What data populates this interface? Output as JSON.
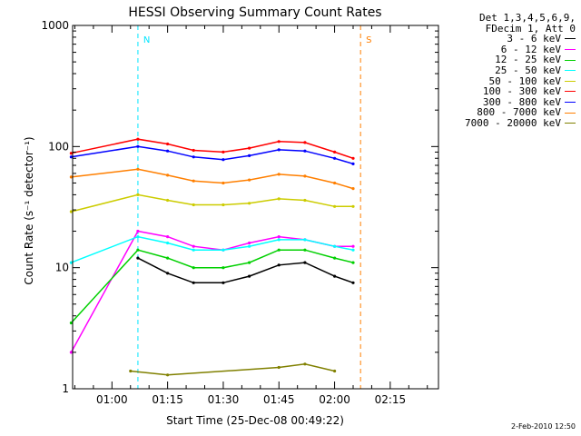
{
  "chart_data": {
    "type": "line",
    "title": "HESSI Observing Summary Count Rates",
    "xlabel": "Start Time (25-Dec-08 00:49:22)",
    "ylabel": "Count Rate (s⁻¹ detector⁻¹)",
    "yscale": "log",
    "ylim": [
      1,
      1000
    ],
    "xlim_minutes_after_midnight": [
      49.4,
      148.0
    ],
    "x_ticks": [
      "01:00",
      "01:15",
      "01:30",
      "01:45",
      "02:00",
      "02:15"
    ],
    "y_ticks": [
      "1",
      "10",
      "100",
      "1000"
    ],
    "legend_header": [
      "Det 1,3,4,5,6,9,",
      "FDecim 1, Att 0"
    ],
    "legend_position": "right-top",
    "flag_lines": [
      {
        "label": "N",
        "time": "01:07",
        "color": "#00e5ff"
      },
      {
        "label": "S",
        "time": "02:07",
        "color": "#ff7f00"
      }
    ],
    "series": [
      {
        "name": "3 - 6 keV",
        "color": "#000000",
        "x": [
          "01:07",
          "01:15",
          "01:22",
          "01:30",
          "01:37",
          "01:45",
          "01:52",
          "02:00",
          "02:05"
        ],
        "values": [
          12,
          9,
          7.5,
          7.5,
          8.5,
          10.5,
          11,
          8.5,
          7.5
        ]
      },
      {
        "name": "6 - 12 keV",
        "color": "#ff00ff",
        "x": [
          "00:49",
          "01:07",
          "01:15",
          "01:22",
          "01:30",
          "01:37",
          "01:45",
          "01:52",
          "02:00",
          "02:05"
        ],
        "values": [
          2,
          20,
          18,
          15,
          14,
          16,
          18,
          17,
          15,
          15
        ]
      },
      {
        "name": "12 - 25 keV",
        "color": "#00d000",
        "x": [
          "00:49",
          "01:07",
          "01:15",
          "01:22",
          "01:30",
          "01:37",
          "01:45",
          "01:52",
          "02:00",
          "02:05"
        ],
        "values": [
          3.5,
          14,
          12,
          10,
          10,
          11,
          14,
          14,
          12,
          11
        ]
      },
      {
        "name": "25 - 50 keV",
        "color": "#00ffff",
        "x": [
          "00:49",
          "01:07",
          "01:15",
          "01:22",
          "01:30",
          "01:37",
          "01:45",
          "01:52",
          "02:00",
          "02:05"
        ],
        "values": [
          11,
          18,
          16,
          14,
          14,
          15,
          17,
          17,
          15,
          14
        ]
      },
      {
        "name": "50 - 100 keV",
        "color": "#cccc00",
        "x": [
          "00:49",
          "01:07",
          "01:15",
          "01:22",
          "01:30",
          "01:37",
          "01:45",
          "01:52",
          "02:00",
          "02:05"
        ],
        "values": [
          29,
          40,
          36,
          33,
          33,
          34,
          37,
          36,
          32,
          32
        ]
      },
      {
        "name": "100 - 300 keV",
        "color": "#ff0000",
        "x": [
          "00:49",
          "01:07",
          "01:15",
          "01:22",
          "01:30",
          "01:37",
          "01:45",
          "01:52",
          "02:00",
          "02:05"
        ],
        "values": [
          88,
          115,
          105,
          93,
          90,
          97,
          110,
          108,
          90,
          80
        ]
      },
      {
        "name": "300 - 800 keV",
        "color": "#0000ff",
        "x": [
          "00:49",
          "01:07",
          "01:15",
          "01:22",
          "01:30",
          "01:37",
          "01:45",
          "01:52",
          "02:00",
          "02:05"
        ],
        "values": [
          82,
          100,
          92,
          82,
          78,
          84,
          94,
          92,
          80,
          72
        ]
      },
      {
        "name": "800 - 7000 keV",
        "color": "#ff7f00",
        "x": [
          "00:49",
          "01:07",
          "01:15",
          "01:22",
          "01:30",
          "01:37",
          "01:45",
          "01:52",
          "02:00",
          "02:05"
        ],
        "values": [
          56,
          65,
          58,
          52,
          50,
          53,
          59,
          57,
          50,
          45
        ]
      },
      {
        "name": "7000 - 20000 keV",
        "color": "#808000",
        "x": [
          "01:05",
          "01:15",
          "01:45",
          "01:52",
          "02:00"
        ],
        "values": [
          1.4,
          1.3,
          1.5,
          1.6,
          1.4
        ]
      }
    ]
  },
  "footer": {
    "date": "2-Feb-2010 12:50"
  }
}
